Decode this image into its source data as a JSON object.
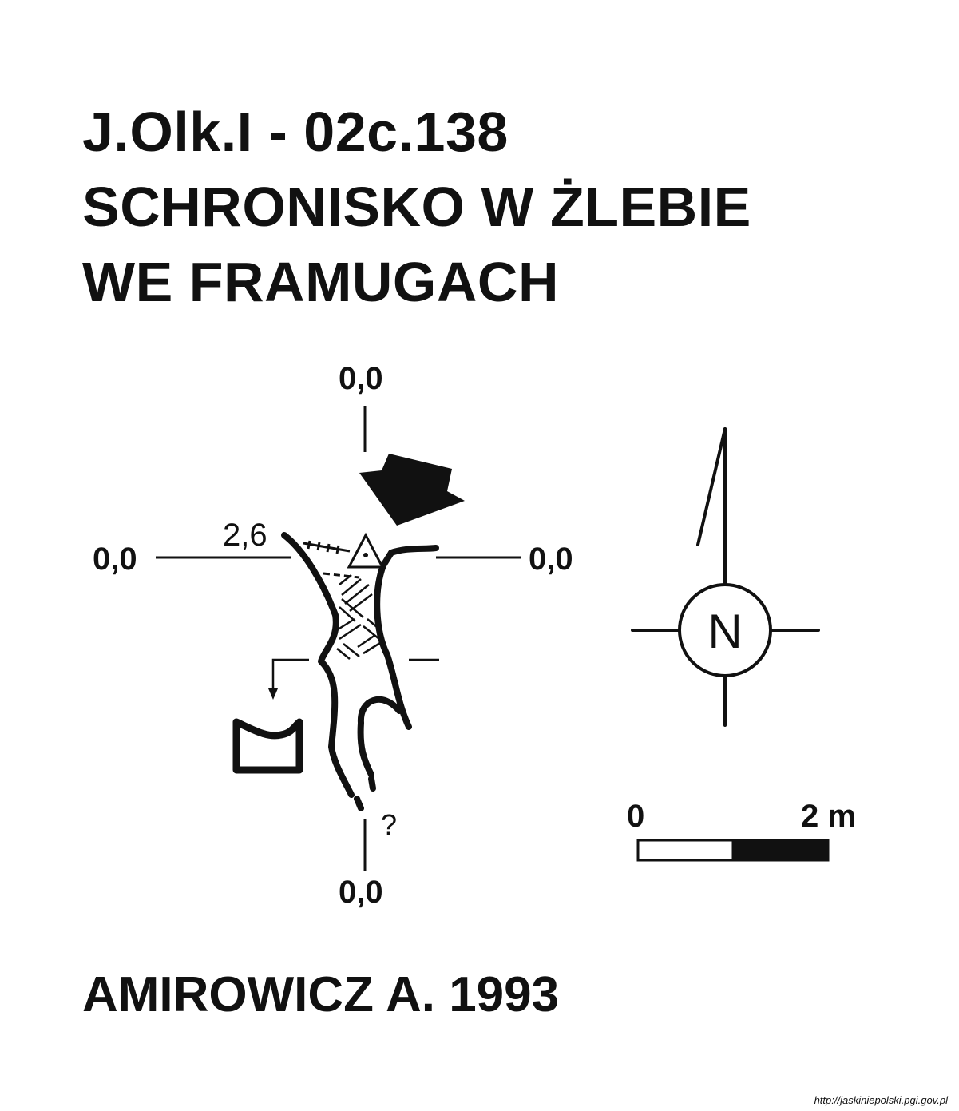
{
  "title": {
    "line1": "J.Olk.I - 02c.138",
    "line2": "SCHRONISKO W ŻLEBIE",
    "line3": "WE FRAMUGACH"
  },
  "plan": {
    "reference_top": "0,0",
    "reference_left": "0,0",
    "reference_right": "0,0",
    "reference_bottom": "0,0",
    "entrance_height": "2,6",
    "unknown_continuation": "?"
  },
  "north_arrow": {
    "label": "N"
  },
  "scale_bar": {
    "start_label": "0",
    "end_label": "2 m"
  },
  "author": "AMIROWICZ A. 1993",
  "source": "http://jaskiniepolski.pgi.gov.pl",
  "colors": {
    "ink": "#111111",
    "background": "#ffffff"
  }
}
